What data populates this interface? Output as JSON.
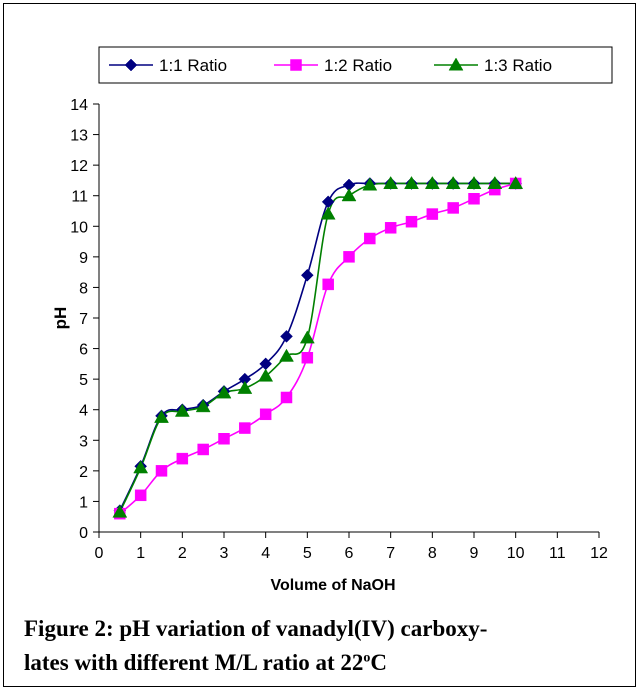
{
  "chart_data": {
    "type": "line",
    "xlabel": "Volume of NaOH",
    "ylabel": "pH",
    "xlim": [
      0,
      12
    ],
    "ylim": [
      0,
      14
    ],
    "x_ticks": [
      "0",
      "1",
      "2",
      "3",
      "4",
      "5",
      "6",
      "7",
      "8",
      "9",
      "10",
      "11",
      "12"
    ],
    "y_ticks": [
      "0",
      "1",
      "2",
      "3",
      "4",
      "5",
      "6",
      "7",
      "8",
      "9",
      "10",
      "11",
      "12",
      "13",
      "14"
    ],
    "grid": false,
    "legend_position": "top",
    "series": [
      {
        "name": "1:1 Ratio",
        "color": "#000080",
        "marker": "diamond",
        "x": [
          0.5,
          1,
          1.5,
          2,
          2.5,
          3,
          3.5,
          4,
          4.5,
          5,
          5.5,
          6,
          6.5,
          7,
          7.5,
          8,
          8.5,
          9,
          9.5,
          10
        ],
        "y": [
          0.7,
          2.15,
          3.8,
          4.0,
          4.15,
          4.6,
          5.0,
          5.5,
          6.4,
          8.4,
          10.8,
          11.35,
          11.4,
          11.4,
          11.4,
          11.4,
          11.4,
          11.4,
          11.4,
          11.4
        ]
      },
      {
        "name": "1:2 Ratio",
        "color": "#ff00ff",
        "marker": "square",
        "x": [
          0.5,
          1,
          1.5,
          2,
          2.5,
          3,
          3.5,
          4,
          4.5,
          5,
          5.5,
          6,
          6.5,
          7,
          7.5,
          8,
          8.5,
          9,
          9.5,
          10
        ],
        "y": [
          0.6,
          1.2,
          2.0,
          2.4,
          2.7,
          3.05,
          3.4,
          3.85,
          4.4,
          5.7,
          8.1,
          9.0,
          9.6,
          9.95,
          10.15,
          10.4,
          10.6,
          10.9,
          11.2,
          11.4
        ]
      },
      {
        "name": "1:3 Ratio",
        "color": "#008000",
        "marker": "triangle",
        "x": [
          0.5,
          1,
          1.5,
          2,
          2.5,
          3,
          3.5,
          4,
          4.5,
          5,
          5.5,
          6,
          6.5,
          7,
          7.5,
          8,
          8.5,
          9,
          9.5,
          10
        ],
        "y": [
          0.65,
          2.1,
          3.75,
          3.95,
          4.1,
          4.55,
          4.7,
          5.1,
          5.75,
          6.35,
          10.4,
          11.0,
          11.35,
          11.4,
          11.4,
          11.4,
          11.4,
          11.4,
          11.4,
          11.4
        ]
      }
    ]
  },
  "caption": {
    "line1": "Figure 2:  pH variation of vanadyl(IV) carboxy-",
    "line2_main": "lates with different M/L ratio at 22",
    "line2_sup": "o",
    "line2_end": "C"
  }
}
